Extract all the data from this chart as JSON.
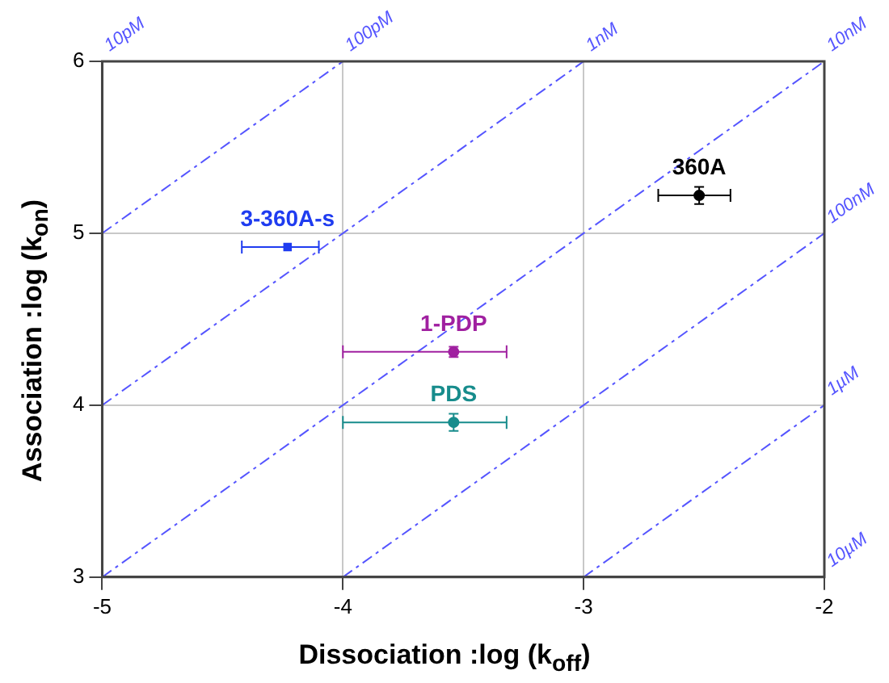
{
  "chart_data": {
    "type": "scatter",
    "xlabel": "Dissociation :log (k$_{off}$)",
    "ylabel": "Association :log (k$_{on}$)",
    "xlim": [
      -5,
      -2
    ],
    "xticks": [
      -5,
      -4,
      -3,
      -2
    ],
    "ylim": [
      3,
      6
    ],
    "yticks": [
      3,
      4,
      5,
      6
    ],
    "grid": true,
    "legend": false,
    "series": [
      {
        "name": "360A",
        "color": "#000000",
        "marker": "circle",
        "x": [
          -2.52
        ],
        "values": [
          5.22
        ],
        "xerrors": [
          [
            -2.69,
            -2.39
          ]
        ],
        "errors": [
          [
            5.17,
            5.27
          ]
        ]
      },
      {
        "name": "3-360A-s",
        "color": "#1f3cf0",
        "marker": "square",
        "x": [
          -4.23
        ],
        "values": [
          4.92
        ],
        "xerrors": [
          [
            -4.42,
            -4.1
          ]
        ],
        "errors": [
          null
        ]
      },
      {
        "name": "1-PDP",
        "color": "#a020a0",
        "marker": "circle",
        "x": [
          -3.54
        ],
        "values": [
          4.31
        ],
        "xerrors": [
          [
            -4.0,
            -3.32
          ]
        ],
        "errors": [
          0.03
        ]
      },
      {
        "name": "PDS",
        "color": "#178c8c",
        "marker": "circle",
        "x": [
          -3.54
        ],
        "values": [
          3.9
        ],
        "xerrors": [
          [
            -4.0,
            -3.32
          ]
        ],
        "errors": [
          0.05
        ]
      },
      {
        "name": "100pM",
        "type": "line",
        "color": "#5555ff",
        "line_style": "dashed",
        "x": [
          -5,
          -4
        ],
        "values": [
          5,
          6
        ]
      },
      {
        "name": "1nM",
        "type": "line",
        "color": "#5555ff",
        "line_style": "dashed",
        "x": [
          -5,
          -3
        ],
        "values": [
          4,
          6
        ]
      },
      {
        "name": "10nM",
        "type": "line",
        "color": "#5555ff",
        "line_style": "dashed",
        "x": [
          -5,
          -2
        ],
        "values": [
          3,
          6
        ]
      },
      {
        "name": "100nM",
        "type": "line",
        "color": "#5555ff",
        "line_style": "dashed",
        "x": [
          -4,
          -2
        ],
        "values": [
          3,
          5
        ]
      },
      {
        "name": "1µM",
        "type": "line",
        "color": "#5555ff",
        "line_style": "dashed",
        "x": [
          -3,
          -2
        ],
        "values": [
          3,
          4
        ]
      }
    ],
    "annotations": [
      "10pM",
      "10µM"
    ]
  }
}
